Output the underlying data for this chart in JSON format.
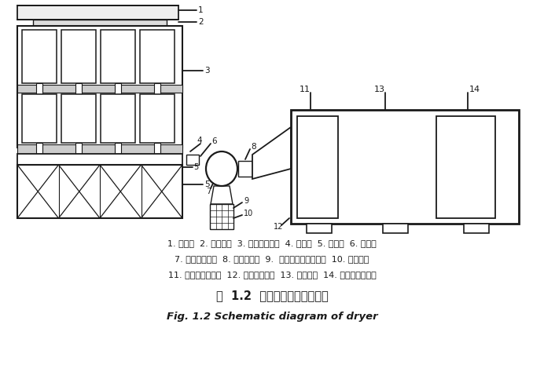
{
  "title_cn": "图  1.2  混联式烘干机结构简图",
  "title_en": "Fig. 1.2 Schematic diagram of dryer",
  "caption_line1": "1. 进风筒  2. 连接导口  3. 太阳能集热器  4. 导风筒  5. 支撇架  6. 配风口",
  "caption_line2": "7. 离心式鼓风机  8. 电加热装置  9.  离心式鼓风机支撇架  10. 电控装置",
  "caption_line3": "11. 换热装置出料口  12. 换热装置底脚  13. 换热装置  14. 换热装置进料口",
  "bg_color": "#ffffff",
  "line_color": "#1a1a1a",
  "text_color": "#1a1a1a",
  "fig_width": 6.92,
  "fig_height": 4.74
}
